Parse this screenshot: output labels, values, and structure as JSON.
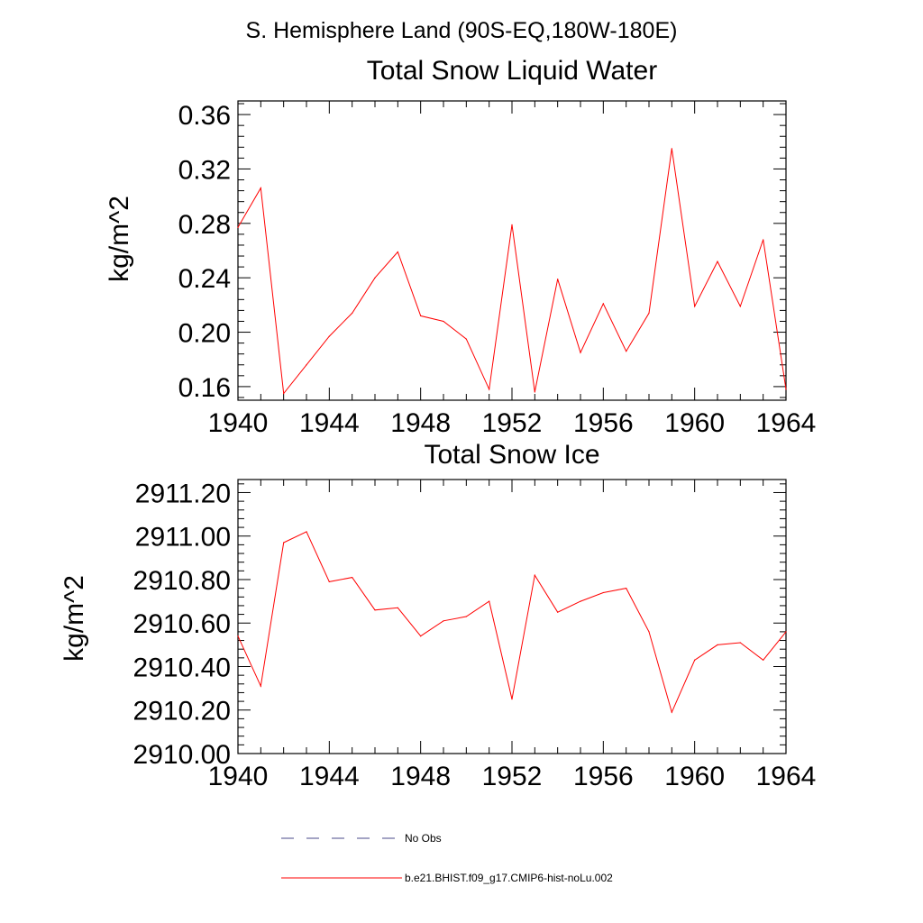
{
  "figure": {
    "title": "S. Hemisphere Land (90S-EQ,180W-180E)"
  },
  "colors": {
    "model": "#ff0000",
    "obs": "#4a4a8a",
    "axis": "#000000"
  },
  "chart_data": [
    {
      "type": "line",
      "title": "Total Snow Liquid Water",
      "xlabel": "",
      "ylabel": "kg/m^2",
      "xlim": [
        1940,
        1964
      ],
      "ylim": [
        0.15,
        0.37
      ],
      "xticks": [
        "1940",
        "1944",
        "1948",
        "1952",
        "1956",
        "1960",
        "1964"
      ],
      "yticks": [
        "0.16",
        "0.20",
        "0.24",
        "0.28",
        "0.32",
        "0.36"
      ],
      "grid": false,
      "series": [
        {
          "name": "b.e21.BHIST.f09_g17.CMIP6-hist-noLu.002",
          "x": [
            1940,
            1941,
            1942,
            1943,
            1944,
            1945,
            1946,
            1947,
            1948,
            1949,
            1950,
            1951,
            1952,
            1953,
            1954,
            1955,
            1956,
            1957,
            1958,
            1959,
            1960,
            1961,
            1962,
            1963,
            1964
          ],
          "values": [
            0.277,
            0.306,
            0.155,
            0.176,
            0.197,
            0.214,
            0.24,
            0.259,
            0.212,
            0.208,
            0.195,
            0.158,
            0.279,
            0.156,
            0.239,
            0.185,
            0.221,
            0.186,
            0.214,
            0.335,
            0.219,
            0.252,
            0.219,
            0.268,
            0.158
          ]
        }
      ]
    },
    {
      "type": "line",
      "title": "Total Snow Ice",
      "xlabel": "",
      "ylabel": "kg/m^2",
      "xlim": [
        1940,
        1964
      ],
      "ylim": [
        2910.0,
        2911.26
      ],
      "xticks": [
        "1940",
        "1944",
        "1948",
        "1952",
        "1956",
        "1960",
        "1964"
      ],
      "yticks": [
        "2910.00",
        "2910.20",
        "2910.40",
        "2910.60",
        "2910.80",
        "2911.00",
        "2911.20"
      ],
      "grid": false,
      "series": [
        {
          "name": "b.e21.BHIST.f09_g17.CMIP6-hist-noLu.002",
          "x": [
            1940,
            1941,
            1942,
            1943,
            1944,
            1945,
            1946,
            1947,
            1948,
            1949,
            1950,
            1951,
            1952,
            1953,
            1954,
            1955,
            1956,
            1957,
            1958,
            1959,
            1960,
            1961,
            1962,
            1963,
            1964
          ],
          "values": [
            2910.54,
            2910.31,
            2910.97,
            2911.02,
            2910.79,
            2910.81,
            2910.66,
            2910.67,
            2910.54,
            2910.61,
            2910.63,
            2910.7,
            2910.25,
            2910.82,
            2910.65,
            2910.7,
            2910.74,
            2910.76,
            2910.56,
            2910.19,
            2910.43,
            2910.5,
            2910.51,
            2910.43,
            2910.56
          ]
        }
      ]
    }
  ],
  "legend": [
    {
      "label": "No Obs",
      "style": "dashed",
      "color_key": "obs"
    },
    {
      "label": "b.e21.BHIST.f09_g17.CMIP6-hist-noLu.002",
      "style": "solid",
      "color_key": "model"
    }
  ]
}
